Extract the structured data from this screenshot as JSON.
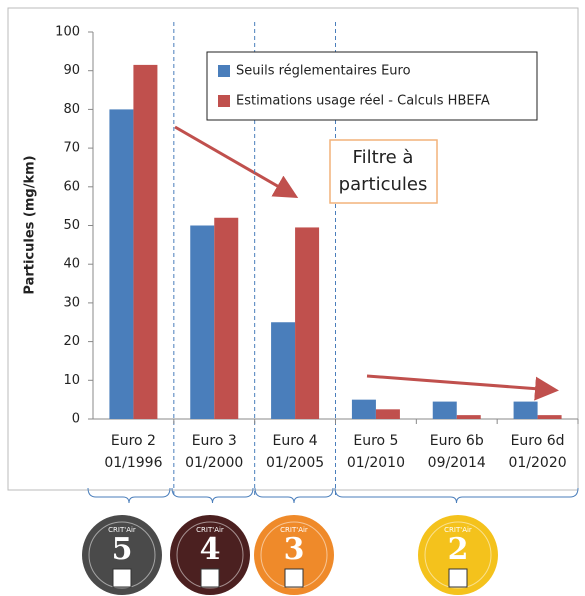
{
  "chart_data": {
    "type": "bar",
    "y_label": "Particules  (mg/km)",
    "categories": [
      [
        "Euro 2",
        "01/1996"
      ],
      [
        "Euro 3",
        "01/2000"
      ],
      [
        "Euro 4",
        "01/2005"
      ],
      [
        "Euro 5",
        "01/2010"
      ],
      [
        "Euro 6b",
        "09/2014"
      ],
      [
        "Euro 6d",
        "01/2020"
      ]
    ],
    "series": [
      {
        "name": "Seuils réglementaires Euro",
        "color": "#4a7ebb",
        "values": [
          80,
          50,
          25,
          5,
          4.5,
          4.5
        ]
      },
      {
        "name": "Estimations usage réel - Calculs HBEFA",
        "color": "#c0504d",
        "values": [
          91.5,
          52,
          49.5,
          2.5,
          1,
          1
        ]
      }
    ],
    "ylim": [
      0,
      100
    ],
    "yticks": [
      0,
      10,
      20,
      30,
      40,
      50,
      60,
      70,
      80,
      90,
      100
    ],
    "annotation": [
      "Filtre à",
      "particules"
    ],
    "badges": [
      {
        "number": "5",
        "text": "CRIT'Air",
        "color": "#4a4a4a"
      },
      {
        "number": "4",
        "text": "CRIT'Air",
        "color": "#4b2020"
      },
      {
        "number": "3",
        "text": "CRIT'Air",
        "color": "#ef8a2a"
      },
      {
        "number": "2",
        "text": "CRIT'Air",
        "color": "#f4c21c"
      }
    ]
  }
}
